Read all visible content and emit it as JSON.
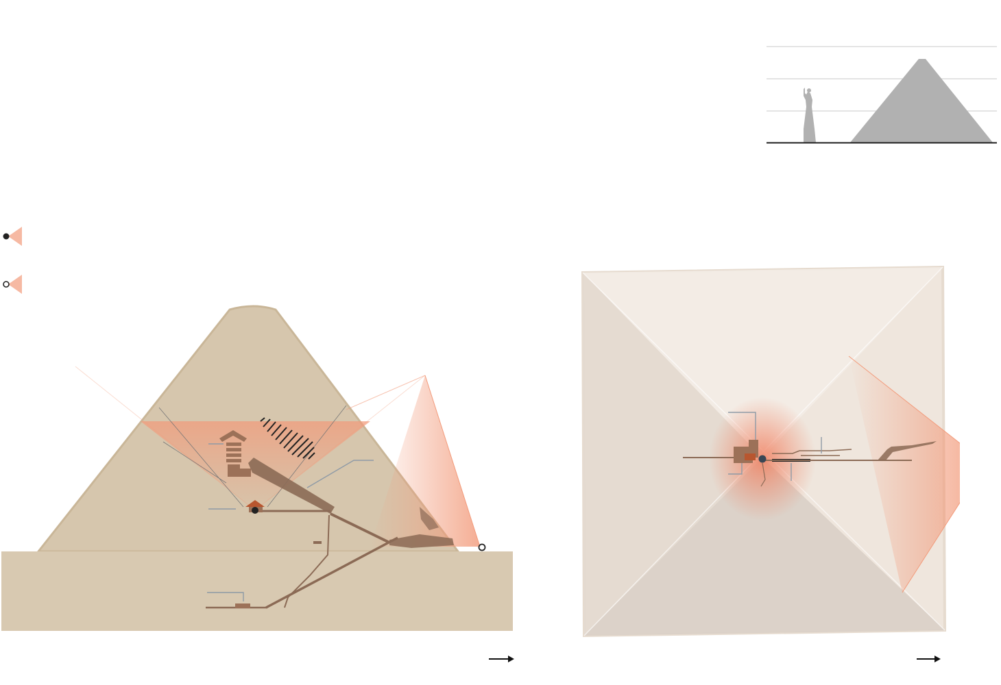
{
  "colors": {
    "pyramid_fill": "#d6c6ad",
    "pyramid_edge": "#c9b698",
    "ground": "#d8c9b1",
    "chamber": "#9c7158",
    "passage": "#8b6a55",
    "scan_cone": "#f29a7a",
    "scan_dark": "#e96f4a",
    "label_line": "#8e9aa6",
    "plan_stone": "#efe6dd",
    "silhouette": "#b1b1b1",
    "gridline": "#c8c8c8",
    "baseline": "#222222"
  },
  "comparison": {
    "gridlines": 3,
    "figures": [
      "statue-of-liberty-icon",
      "pyramid-silhouette-icon"
    ]
  },
  "legend": {
    "items": [
      {
        "marker": "filled-circle-icon"
      },
      {
        "marker": "open-circle-icon"
      }
    ]
  },
  "views": {
    "section": {
      "direction_icon": "arrow-right-icon"
    },
    "plan": {
      "direction_icon": "arrow-right-icon"
    }
  }
}
